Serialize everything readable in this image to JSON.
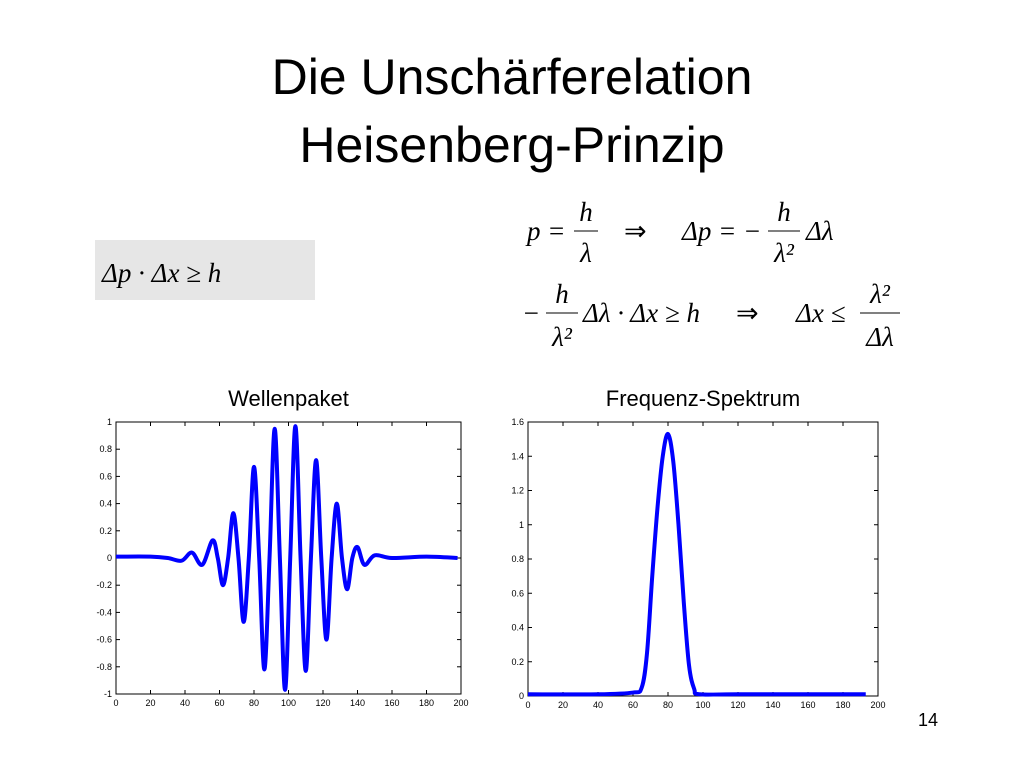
{
  "title": [
    "Die Unschärferelation",
    "Heisenberg-Prinzip"
  ],
  "formulas": {
    "box": "Δp · Δx ≥ h",
    "line1": [
      "p =",
      {
        "num": "h",
        "den": "λ"
      },
      "⇒",
      "Δp = −",
      {
        "num": "h",
        "den": "λ²"
      },
      "Δλ"
    ],
    "line2": [
      "−",
      {
        "num": "h",
        "den": "λ²"
      },
      "Δλ · Δx ≥ h",
      "⇒",
      "Δx ≤",
      {
        "num": "λ²",
        "den": "Δλ"
      }
    ]
  },
  "chart_data": [
    {
      "type": "line",
      "title": "Wellenpaket",
      "color": "#0000ff",
      "x": [
        0,
        20,
        30,
        38,
        44,
        50,
        56,
        59,
        62,
        65,
        68,
        71,
        74,
        77,
        80,
        83,
        86,
        89,
        92,
        95,
        98,
        101,
        104,
        107,
        110,
        113,
        116,
        119,
        122,
        125,
        128,
        131,
        134,
        137,
        140,
        144,
        150,
        160,
        180,
        198
      ],
      "values": [
        0.01,
        0.01,
        0,
        -0.02,
        0.04,
        -0.05,
        0.13,
        0,
        -0.2,
        0,
        0.33,
        0,
        -0.47,
        0,
        0.67,
        0,
        -0.82,
        0,
        0.95,
        0,
        -0.97,
        0,
        0.97,
        0,
        -0.83,
        0,
        0.72,
        0,
        -0.6,
        0,
        0.4,
        0,
        -0.23,
        0,
        0.08,
        -0.05,
        0.02,
        0,
        0.01,
        0
      ],
      "xlim": [
        0,
        200
      ],
      "ylim": [
        -1,
        1
      ],
      "xticks": [
        0,
        20,
        40,
        60,
        80,
        100,
        120,
        140,
        160,
        180,
        200
      ],
      "yticks": [
        -1,
        -0.8,
        -0.6,
        -0.4,
        -0.2,
        0,
        0.2,
        0.4,
        0.6,
        0.8,
        1
      ]
    },
    {
      "type": "line",
      "title": "Frequenz-Spektrum",
      "color": "#0000ff",
      "x": [
        0,
        40,
        60,
        65,
        68,
        71,
        74,
        77,
        80,
        83,
        86,
        89,
        92,
        95,
        98,
        120,
        193
      ],
      "values": [
        0.01,
        0.01,
        0.02,
        0.05,
        0.25,
        0.7,
        1.1,
        1.4,
        1.53,
        1.37,
        1.0,
        0.55,
        0.18,
        0.04,
        0.01,
        0.01,
        0.01
      ],
      "xlim": [
        0,
        200
      ],
      "ylim": [
        0,
        1.6
      ],
      "xticks": [
        0,
        20,
        40,
        60,
        80,
        100,
        120,
        140,
        160,
        180,
        200
      ],
      "yticks": [
        0,
        0.2,
        0.4,
        0.6,
        0.8,
        1,
        1.2,
        1.4,
        1.6
      ]
    }
  ],
  "page_number": "14"
}
